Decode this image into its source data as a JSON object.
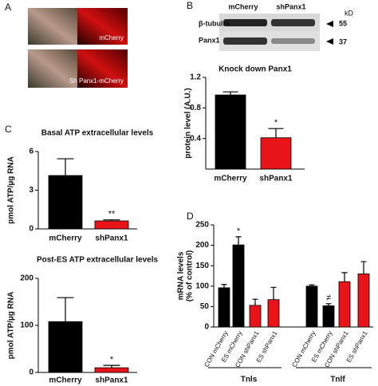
{
  "panel_labels": [
    "A",
    "B",
    "C",
    "D"
  ],
  "image_labels": [
    "mCherry",
    "Sh Panx1-mCherry"
  ],
  "blot": {
    "columns": [
      "mCherry",
      "shPanx1"
    ],
    "unit": "kD",
    "rows": [
      {
        "label": "β-tubulin",
        "size": "55"
      },
      {
        "label": "Panx1",
        "size": "37"
      }
    ]
  },
  "chart_data": [
    {
      "type": "bar",
      "title": "Knock down Panx1",
      "ylabel": [
        "protein level (A.U.)"
      ],
      "categories": [
        "mCherry",
        "shPanx1"
      ],
      "values": [
        0.97,
        0.41
      ],
      "errors": [
        0.04,
        0.12
      ],
      "colors": [
        "#000000",
        "#e8141a"
      ],
      "significance": [
        null,
        "*"
      ],
      "ylim": [
        0,
        1.2
      ],
      "yticks": [
        0.4,
        0.8,
        1.2
      ]
    },
    {
      "type": "bar",
      "title": "Basal ATP extracellular levels",
      "ylabel": [
        "pmol ATP/µg RNA"
      ],
      "categories": [
        "mCherry",
        "shPanx1"
      ],
      "values": [
        4.14,
        0.62
      ],
      "errors": [
        1.3,
        0.08
      ],
      "colors": [
        "#000000",
        "#e8141a"
      ],
      "significance": [
        null,
        "**"
      ],
      "ylim": [
        0,
        6
      ],
      "yticks": [
        0,
        3,
        6
      ]
    },
    {
      "type": "bar",
      "title": "Post-ES ATP extracellular levels",
      "ylabel": [
        "pmol ATP/µg RNA"
      ],
      "categories": [
        "mCherry",
        "shPanx1"
      ],
      "values": [
        108,
        10
      ],
      "errors": [
        51,
        5
      ],
      "colors": [
        "#000000",
        "#e8141a"
      ],
      "significance": [
        null,
        "*"
      ],
      "ylim": [
        0,
        200
      ],
      "yticks": [
        0,
        100,
        200
      ]
    },
    {
      "type": "grouped-bar",
      "ylabel": [
        "mRNA  levels",
        "(% of control)"
      ],
      "groups": [
        {
          "name": "Tnls",
          "categories": [
            "CON mCherry",
            "ES mCherry",
            "CON shPanx1",
            "ES shPanx1"
          ],
          "values": [
            96,
            201,
            53,
            67
          ],
          "errors": [
            8,
            20,
            15,
            30
          ],
          "colors": [
            "#000000",
            "#000000",
            "#e8141a",
            "#e8141a"
          ],
          "significance": [
            null,
            "*",
            null,
            null
          ]
        },
        {
          "name": "Tnlf",
          "categories": [
            "CON mCherry",
            "ES mCherry",
            "CON shPanx1",
            "ES shPanx1"
          ],
          "values": [
            100,
            52,
            111,
            130
          ],
          "errors": [
            3,
            5,
            22,
            30
          ],
          "colors": [
            "#000000",
            "#000000",
            "#e8141a",
            "#e8141a"
          ],
          "significance": [
            null,
            "≠",
            null,
            null
          ]
        }
      ],
      "ylim": [
        0,
        250
      ],
      "yticks": [
        0,
        50,
        100,
        150,
        200,
        250
      ]
    }
  ]
}
